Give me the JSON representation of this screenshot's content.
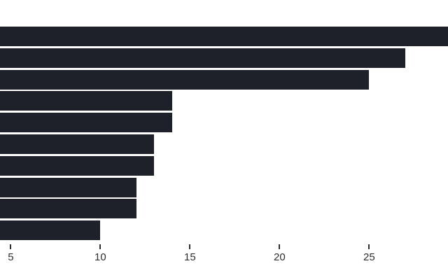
{
  "chart_data": {
    "type": "bar",
    "orientation": "horizontal",
    "title": "",
    "xlabel": "",
    "ylabel": "",
    "values": [
      29.4,
      27,
      25,
      14,
      14,
      13,
      13,
      12,
      12,
      10
    ],
    "x_ticks": [
      5,
      10,
      15,
      20,
      25
    ],
    "xlim_visible": [
      4.4,
      29.4
    ],
    "grid": "off",
    "legend": "none",
    "bar_color": "#1e2129",
    "tick_color": "#2e2e2e",
    "label_color": "#2e2e2e",
    "background_color": "#ffffff"
  }
}
